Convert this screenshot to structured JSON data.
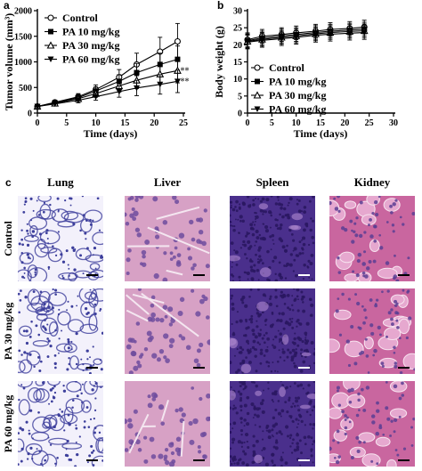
{
  "panels": {
    "a": "a",
    "b": "b",
    "c": "c"
  },
  "chart_data": [
    {
      "type": "line",
      "panel": "a",
      "xlabel": "Time (days)",
      "ylabel": "Tumor volume (mm³)",
      "xlim": [
        0,
        25
      ],
      "ylim": [
        0,
        2000
      ],
      "xticks": [
        0,
        5,
        10,
        15,
        20,
        25
      ],
      "yticks": [
        0,
        500,
        1000,
        1500,
        2000
      ],
      "x": [
        0,
        3,
        7,
        10,
        14,
        17,
        21,
        24
      ],
      "legend_position": "top-left",
      "series": [
        {
          "name": "Control",
          "marker": "open-circle",
          "values": [
            130,
            210,
            320,
            460,
            700,
            950,
            1200,
            1400
          ],
          "errors": [
            30,
            40,
            60,
            90,
            150,
            220,
            280,
            350
          ]
        },
        {
          "name": "PA 10 mg/kg",
          "marker": "filled-square",
          "values": [
            130,
            200,
            300,
            430,
            620,
            790,
            950,
            1050
          ],
          "errors": [
            30,
            40,
            60,
            80,
            130,
            180,
            220,
            260
          ]
        },
        {
          "name": "PA 30 mg/kg",
          "marker": "open-triangle",
          "values": [
            130,
            190,
            280,
            380,
            530,
            640,
            760,
            830
          ],
          "errors": [
            30,
            40,
            50,
            70,
            120,
            160,
            200,
            240
          ]
        },
        {
          "name": "PA 60 mg/kg",
          "marker": "filled-down-triangle",
          "values": [
            130,
            180,
            250,
            320,
            420,
            490,
            560,
            620
          ],
          "errors": [
            30,
            40,
            50,
            70,
            110,
            150,
            190,
            220
          ]
        }
      ],
      "annotations": [
        "**",
        "**"
      ]
    },
    {
      "type": "line",
      "panel": "b",
      "xlabel": "Time (days)",
      "ylabel": "Body weight (g)",
      "xlim": [
        0,
        30
      ],
      "ylim": [
        0,
        30
      ],
      "xticks": [
        0,
        5,
        10,
        15,
        20,
        25,
        30
      ],
      "yticks": [
        0,
        5,
        10,
        15,
        20,
        25,
        30
      ],
      "x": [
        0,
        3,
        7,
        10,
        14,
        17,
        21,
        24
      ],
      "legend_position": "bottom",
      "series": [
        {
          "name": "Control",
          "marker": "open-circle",
          "values": [
            21.5,
            22.5,
            23,
            23.5,
            24,
            24.5,
            24.8,
            25.2
          ],
          "errors": [
            2,
            2,
            2,
            2,
            2,
            2,
            2,
            2
          ]
        },
        {
          "name": "PA 10 mg/kg",
          "marker": "filled-square",
          "values": [
            21.2,
            22,
            22.6,
            23,
            23.6,
            24,
            24.3,
            24.6
          ],
          "errors": [
            2,
            2,
            2,
            2,
            2,
            2,
            2,
            2
          ]
        },
        {
          "name": "PA 30 mg/kg",
          "marker": "open-triangle",
          "values": [
            21,
            21.6,
            22.2,
            22.6,
            23.2,
            23.6,
            23.9,
            24.1
          ],
          "errors": [
            2,
            2,
            2,
            2,
            2,
            2,
            2,
            2
          ]
        },
        {
          "name": "PA 60 mg/kg",
          "marker": "filled-down-triangle",
          "values": [
            20.8,
            21.3,
            21.8,
            22.2,
            22.8,
            23.1,
            23.4,
            23.6
          ],
          "errors": [
            2,
            2,
            2,
            2,
            2,
            2,
            2,
            2
          ]
        }
      ]
    }
  ],
  "histology": {
    "columns": [
      "Lung",
      "Liver",
      "Spleen",
      "Kidney"
    ],
    "rows": [
      "Control",
      "PA 30 mg/kg",
      "PA 60 mg/kg"
    ]
  },
  "colors": {
    "lung_bg": "#f3f1fb",
    "lung_cell": "#3d3f9c",
    "liver_bg": "#d7a1c5",
    "liver_cell": "#6e4c9e",
    "spleen_bg": "#4a2f8c",
    "spleen_cell": "#2a1760",
    "kidney_bg": "#c9669f",
    "kidney_cell": "#5b3e93"
  }
}
